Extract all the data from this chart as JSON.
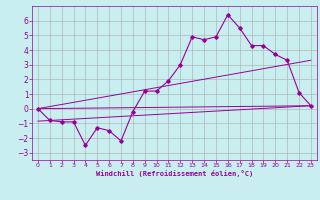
{
  "xlabel": "Windchill (Refroidissement éolien,°C)",
  "background_color": "#c8eef0",
  "grid_color": "#aaaaaa",
  "line_color": "#990099",
  "xlim": [
    -0.5,
    23.5
  ],
  "ylim": [
    -3.5,
    7.0
  ],
  "xticks": [
    0,
    1,
    2,
    3,
    4,
    5,
    6,
    7,
    8,
    9,
    10,
    11,
    12,
    13,
    14,
    15,
    16,
    17,
    18,
    19,
    20,
    21,
    22,
    23
  ],
  "yticks": [
    -3,
    -2,
    -1,
    0,
    1,
    2,
    3,
    4,
    5,
    6
  ],
  "main_x": [
    0,
    1,
    2,
    3,
    4,
    5,
    6,
    7,
    8,
    9,
    10,
    11,
    12,
    13,
    14,
    15,
    16,
    17,
    18,
    19,
    20,
    21,
    22,
    23
  ],
  "main_y": [
    0,
    -0.8,
    -0.9,
    -0.9,
    -2.5,
    -1.3,
    -1.5,
    -2.2,
    -0.2,
    1.2,
    1.2,
    1.9,
    3.0,
    4.9,
    4.7,
    4.9,
    6.4,
    5.5,
    4.3,
    4.3,
    3.7,
    3.3,
    1.1,
    0.2
  ],
  "line1_x": [
    0,
    23
  ],
  "line1_y": [
    0.0,
    3.3
  ],
  "line2_x": [
    0,
    23
  ],
  "line2_y": [
    0.0,
    0.2
  ],
  "line3_x": [
    0,
    23
  ],
  "line3_y": [
    -0.85,
    0.2
  ]
}
